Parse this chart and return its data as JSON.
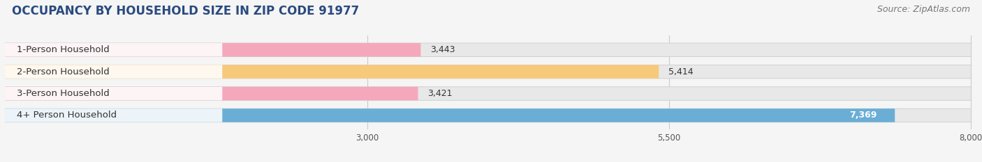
{
  "title": "OCCUPANCY BY HOUSEHOLD SIZE IN ZIP CODE 91977",
  "source_text": "Source: ZipAtlas.com",
  "categories": [
    "1-Person Household",
    "2-Person Household",
    "3-Person Household",
    "4+ Person Household"
  ],
  "values": [
    3443,
    5414,
    3421,
    7369
  ],
  "bar_colors": [
    "#f5a8bc",
    "#f7c97a",
    "#f5a8bc",
    "#6aaed6"
  ],
  "bar_bg_color": "#e8e8e8",
  "x_min": 0,
  "x_max": 8000,
  "x_ticks": [
    3000,
    5500,
    8000
  ],
  "background_color": "#f5f5f5",
  "title_color": "#2a4a7f",
  "title_fontsize": 12,
  "source_fontsize": 9,
  "label_fontsize": 9.5,
  "value_fontsize": 9,
  "bar_height": 0.62,
  "bar_gap": 1.0
}
